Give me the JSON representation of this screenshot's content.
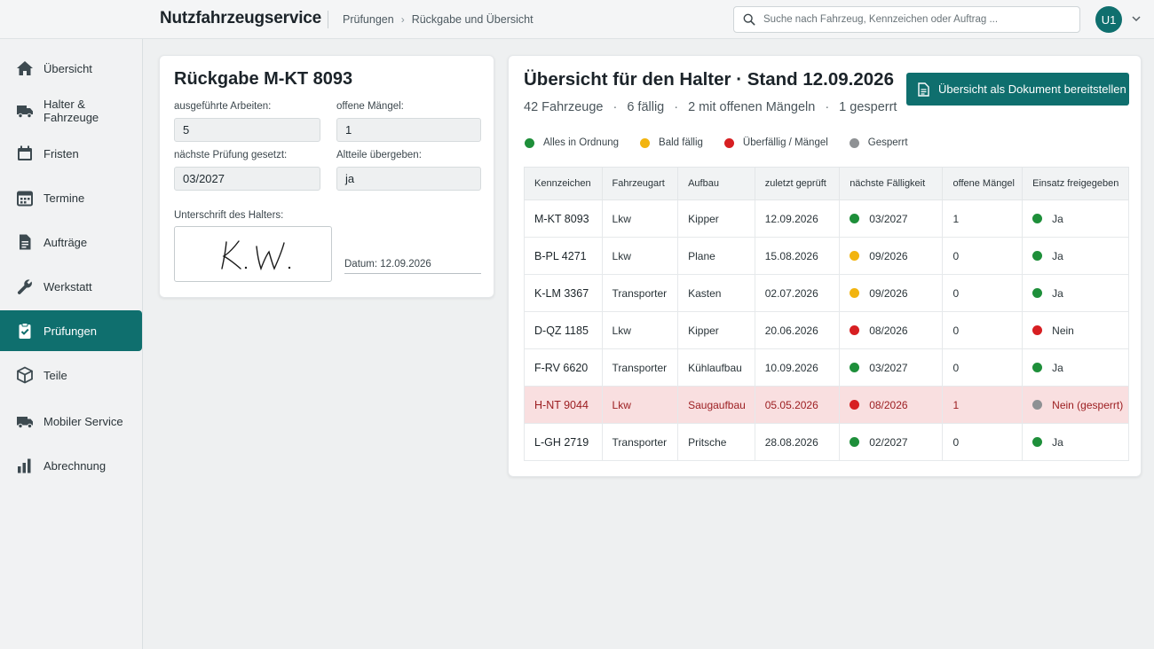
{
  "app": {
    "title": "Nutzfahrzeugservice"
  },
  "breadcrumb": [
    "Prüfungen",
    "Rückgabe und Übersicht"
  ],
  "search": {
    "placeholder": "Suche nach Fahrzeug, Kennzeichen oder Auftrag ..."
  },
  "user": {
    "initials": "U1"
  },
  "sidebar": {
    "items": [
      {
        "label": "Übersicht",
        "icon": "home-icon"
      },
      {
        "label": "Halter & Fahrzeuge",
        "icon": "truck-icon"
      },
      {
        "label": "Fristen",
        "icon": "calendar-icon"
      },
      {
        "label": "Termine",
        "icon": "calendar-grid-icon"
      },
      {
        "label": "Aufträge",
        "icon": "document-icon"
      },
      {
        "label": "Werkstatt",
        "icon": "wrench-icon"
      },
      {
        "label": "Prüfungen",
        "icon": "clipboard-check-icon",
        "active": true
      },
      {
        "label": "Teile",
        "icon": "box-icon"
      },
      {
        "label": "Mobiler Service",
        "icon": "van-icon"
      },
      {
        "label": "Abrechnung",
        "icon": "bar-chart-icon"
      }
    ]
  },
  "return_card": {
    "title": "Rückgabe M-KT 8093",
    "fields": {
      "work_done_label": "ausgeführte Arbeiten:",
      "work_done_value": "5",
      "open_defects_label": "offene Mängel:",
      "open_defects_value": "1",
      "next_check_label": "nächste Prüfung gesetzt:",
      "next_check_value": "03/2027",
      "old_parts_label": "Altteile übergeben:",
      "old_parts_value": "ja"
    },
    "signature_label": "Unterschrift des Halters:",
    "signature_text": "K. W.",
    "date_text": "Datum: 12.09.2026"
  },
  "overview": {
    "title": "Übersicht für den Halter · Stand 12.09.2026",
    "stats": [
      "42 Fahrzeuge",
      "6 fällig",
      "2 mit offenen Mängeln",
      "1 gesperrt"
    ],
    "stat_separator": "·",
    "doc_button_label": "Übersicht als Dokument bereitstellen",
    "legend": [
      {
        "label": "Alles in Ordnung",
        "color": "#1e8f3a"
      },
      {
        "label": "Bald fällig",
        "color": "#f2b40f"
      },
      {
        "label": "Überfällig / Mängel",
        "color": "#d71f22"
      },
      {
        "label": "Gesperrt",
        "color": "#8e9194"
      }
    ],
    "columns": [
      "Kennzeichen",
      "Fahrzeugart",
      "Aufbau",
      "zuletzt geprüft",
      "nächste Fälligkeit",
      "offene Mängel",
      "Einsatz freigegeben"
    ],
    "rows": [
      {
        "plate": "M-KT 8093",
        "type": "Lkw",
        "body": "Kipper",
        "last": "12.09.2026",
        "next": "03/2027",
        "next_status": "ok",
        "defects": "1",
        "release": "Ja",
        "release_status": "ok",
        "flagged": false
      },
      {
        "plate": "B-PL 4271",
        "type": "Lkw",
        "body": "Plane",
        "last": "15.08.2026",
        "next": "09/2026",
        "next_status": "soon",
        "defects": "0",
        "release": "Ja",
        "release_status": "ok",
        "flagged": false
      },
      {
        "plate": "K-LM 3367",
        "type": "Transporter",
        "body": "Kasten",
        "last": "02.07.2026",
        "next": "09/2026",
        "next_status": "soon",
        "defects": "0",
        "release": "Ja",
        "release_status": "ok",
        "flagged": false
      },
      {
        "plate": "D-QZ 1185",
        "type": "Lkw",
        "body": "Kipper",
        "last": "20.06.2026",
        "next": "08/2026",
        "next_status": "overdue",
        "defects": "0",
        "release": "Nein",
        "release_status": "overdue",
        "flagged": false
      },
      {
        "plate": "F-RV 6620",
        "type": "Transporter",
        "body": "Kühlaufbau",
        "last": "10.09.2026",
        "next": "03/2027",
        "next_status": "ok",
        "defects": "0",
        "release": "Ja",
        "release_status": "ok",
        "flagged": false
      },
      {
        "plate": "H-NT 9044",
        "type": "Lkw",
        "body": "Saugaufbau",
        "last": "05.05.2026",
        "next": "08/2026",
        "next_status": "overdue",
        "defects": "1",
        "release": "Nein (gesperrt)",
        "release_status": "blocked",
        "flagged": true
      },
      {
        "plate": "L-GH 2719",
        "type": "Transporter",
        "body": "Pritsche",
        "last": "28.08.2026",
        "next": "02/2027",
        "next_status": "ok",
        "defects": "0",
        "release": "Ja",
        "release_status": "ok",
        "flagged": false
      }
    ],
    "status_colors": {
      "ok": "#1e8f3a",
      "soon": "#f2b40f",
      "overdue": "#d71f22",
      "blocked": "#8e9194"
    }
  },
  "colors": {
    "accent": "#0f6f6e",
    "flagged_row_bg": "#f9dfe0"
  }
}
